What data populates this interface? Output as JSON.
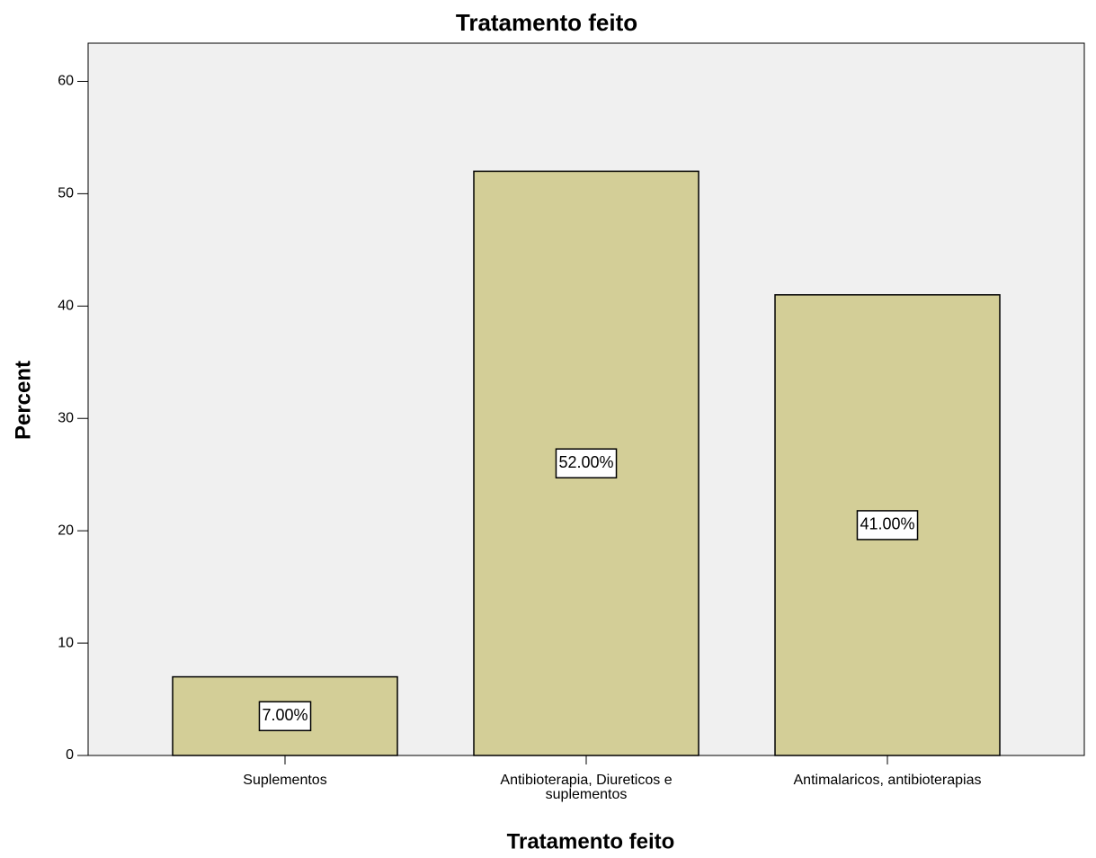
{
  "chart_data": {
    "type": "bar",
    "title": "Tratamento feito",
    "x_label": "Tratamento feito",
    "y_label": "Percent",
    "categories": [
      "Suplementos",
      "Antibioterapia, Diureticos e suplementos",
      "Antimalaricos, antibioterapias"
    ],
    "values": [
      7,
      52,
      41
    ],
    "value_labels": [
      "7.00%",
      "52.00%",
      "41.00%"
    ],
    "color": "#d3ce97",
    "ylim": [
      0,
      63.4
    ],
    "yticks": [
      0,
      10,
      20,
      30,
      40,
      50,
      60
    ],
    "grid": false
  }
}
